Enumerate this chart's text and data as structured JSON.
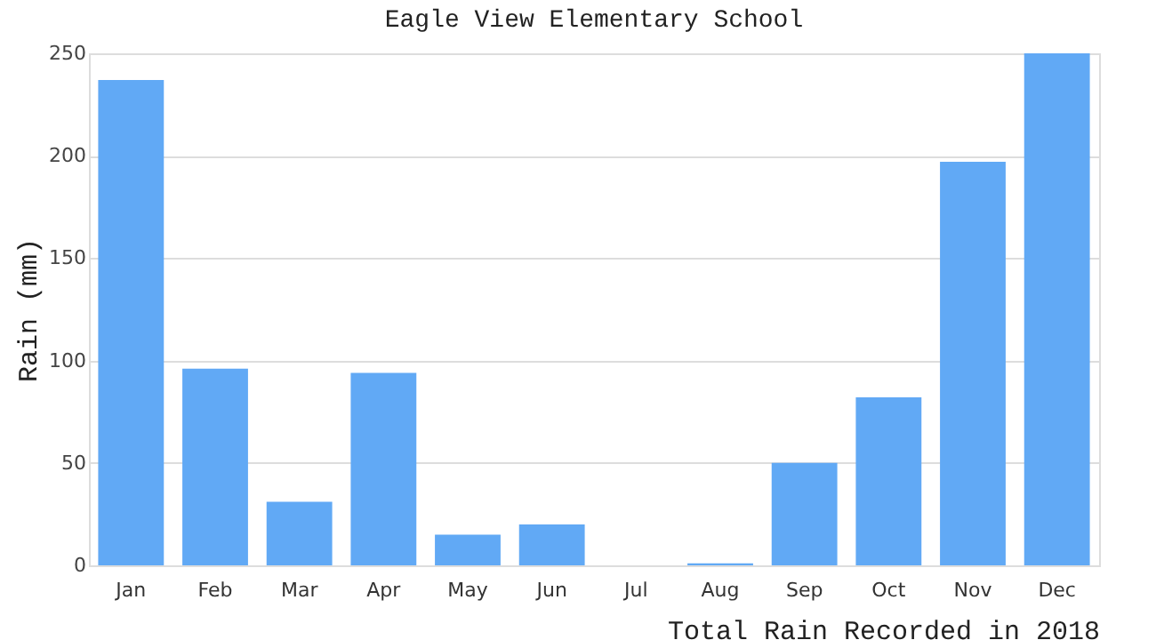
{
  "chart_data": {
    "type": "bar",
    "title": "Eagle View Elementary School",
    "xlabel": "Total Rain Recorded in 2018",
    "ylabel": "Rain (mm)",
    "categories": [
      "Jan",
      "Feb",
      "Mar",
      "Apr",
      "May",
      "Jun",
      "Jul",
      "Aug",
      "Sep",
      "Oct",
      "Nov",
      "Dec"
    ],
    "values": [
      237,
      96,
      31,
      94,
      15,
      20,
      0,
      1,
      50,
      82,
      197,
      250
    ],
    "color": "#61a9f5",
    "ylim": [
      0,
      250
    ],
    "yticks": [
      0,
      50,
      100,
      150,
      200,
      250
    ],
    "grid": "y"
  }
}
